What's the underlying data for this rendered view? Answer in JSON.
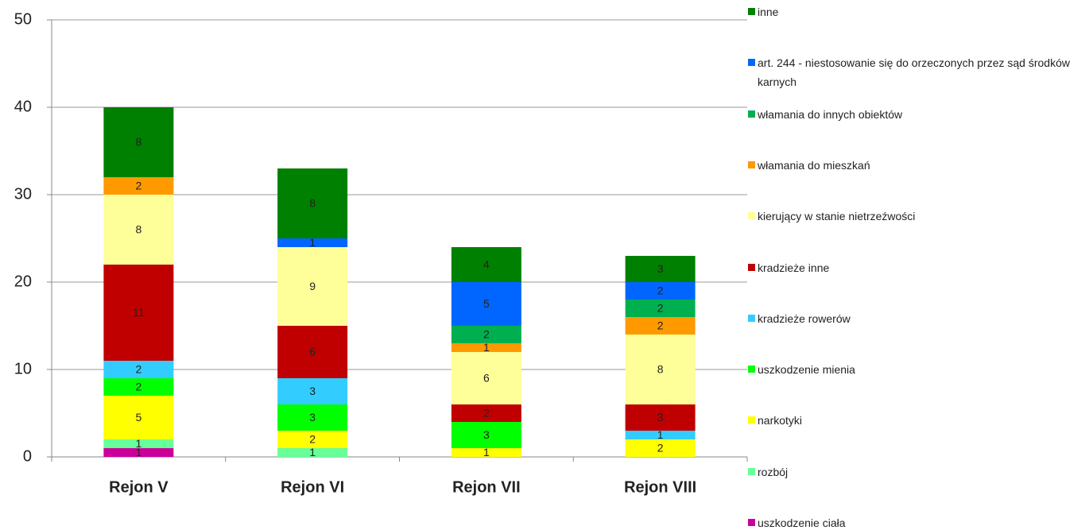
{
  "chart_data": {
    "type": "stacked_bar",
    "categories": [
      "Rejon V",
      "Rejon VI",
      "Rejon VII",
      "Rejon VIII"
    ],
    "series": [
      {
        "name": "uszkodzenie ciała",
        "color": "#cc0099",
        "values": [
          1,
          null,
          null,
          null
        ]
      },
      {
        "name": "rozbój",
        "color": "#66ff99",
        "values": [
          1,
          1,
          null,
          null
        ]
      },
      {
        "name": "narkotyki",
        "color": "#ffff00",
        "values": [
          5,
          2,
          1,
          2
        ]
      },
      {
        "name": "uszkodzenie mienia",
        "color": "#00ff00",
        "values": [
          2,
          3,
          3,
          null
        ]
      },
      {
        "name": "kradzieże rowerów",
        "color": "#33ccff",
        "values": [
          2,
          3,
          null,
          1
        ]
      },
      {
        "name": "kradzieże inne",
        "color": "#c00000",
        "values": [
          11,
          6,
          2,
          3
        ]
      },
      {
        "name": "kierujący w stanie nietrzeźwości",
        "color": "#ffff99",
        "values": [
          8,
          9,
          6,
          8
        ]
      },
      {
        "name": "włamania do mieszkań",
        "color": "#ff9900",
        "values": [
          2,
          null,
          1,
          2
        ]
      },
      {
        "name": "włamania do innych obiektów",
        "color": "#00b050",
        "values": [
          null,
          null,
          2,
          2
        ]
      },
      {
        "name": "art. 244 - niestosowanie się do orzeczonych przez sąd środków karnych",
        "color": "#0066ff",
        "values": [
          null,
          1,
          5,
          2
        ]
      },
      {
        "name": "inne",
        "color": "#008000",
        "values": [
          8,
          8,
          4,
          3
        ]
      }
    ],
    "ylim": [
      0,
      50
    ],
    "yticks": [
      0,
      10,
      20,
      30,
      40,
      50
    ],
    "grid": true
  }
}
